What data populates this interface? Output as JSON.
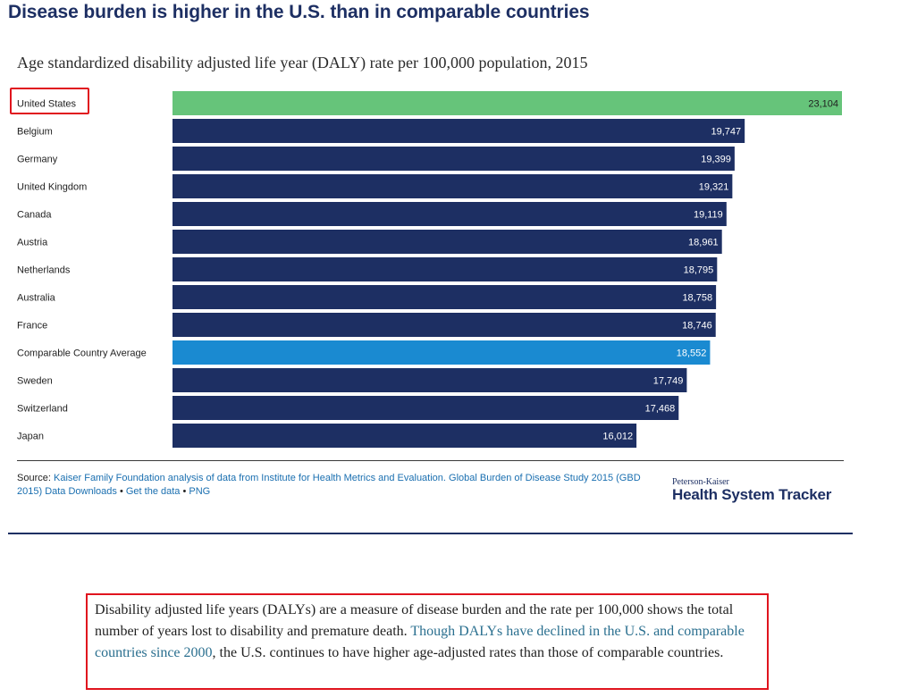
{
  "title": "Disease burden is higher in the U.S. than in comparable countries",
  "colors": {
    "highlight_us": "#66c47a",
    "default_bar": "#1d2f63",
    "average_bar": "#1a8ad1",
    "us_value_text": "#1f1f1f",
    "value_text": "#ffffff"
  },
  "chart_data": {
    "type": "bar",
    "orientation": "horizontal",
    "title": "Age standardized disability adjusted life year (DALY) rate per 100,000 population, 2015",
    "categories": [
      "United States",
      "Belgium",
      "Germany",
      "United Kingdom",
      "Canada",
      "Austria",
      "Netherlands",
      "Australia",
      "France",
      "Comparable Country Average",
      "Sweden",
      "Switzerland",
      "Japan"
    ],
    "values": [
      23104,
      19747,
      19399,
      19321,
      19119,
      18961,
      18795,
      18758,
      18746,
      18552,
      17749,
      17468,
      16012
    ],
    "value_labels": [
      "23,104",
      "19,747",
      "19,399",
      "19,321",
      "19,119",
      "18,961",
      "18,795",
      "18,758",
      "18,746",
      "18,552",
      "17,749",
      "17,468",
      "16,012"
    ],
    "bar_colors": [
      "highlight_us",
      "default_bar",
      "default_bar",
      "default_bar",
      "default_bar",
      "default_bar",
      "default_bar",
      "default_bar",
      "default_bar",
      "average_bar",
      "default_bar",
      "default_bar",
      "default_bar"
    ],
    "xlim": [
      0,
      23104
    ],
    "legend": "none",
    "grid": false
  },
  "source": {
    "label": "Source:",
    "text": "Kaiser Family Foundation analysis of data from Institute for Health Metrics and Evaluation. Global Burden of Disease Study 2015 (GBD 2015) Data Downloads",
    "sep1": " • ",
    "get_data": "Get the data",
    "sep2": " • ",
    "png": "PNG"
  },
  "brand": {
    "small": "Peterson-Kaiser",
    "big": "Health System Tracker"
  },
  "note": {
    "before": "Disability adjusted life years (DALYs) are a measure of disease burden and the rate per 100,000 shows the total number of years lost to disability and premature death. ",
    "link": "Though DALYs have declined in the U.S. and comparable countries since 2000",
    "after": ", the U.S. continues to have higher age-adjusted rates than those of comparable countries."
  }
}
